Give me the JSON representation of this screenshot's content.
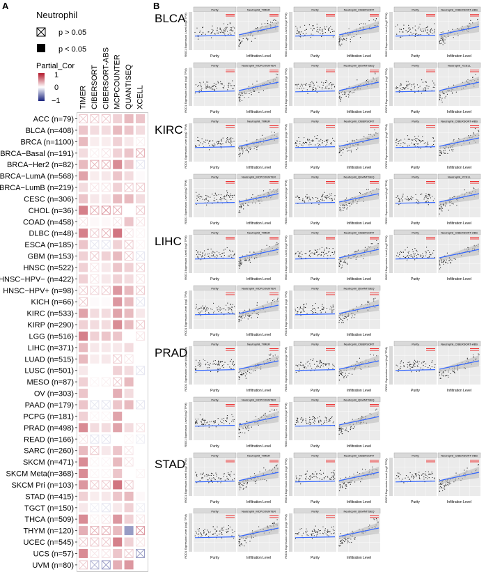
{
  "panel_a": {
    "label": "A",
    "legend": {
      "title": "Neutrophil",
      "ns_label": "p > 0.05",
      "sig_label": "p < 0.05",
      "scale_title": "Partial_Cor",
      "scale_ticks": [
        "1",
        "0",
        "−1"
      ]
    }
  },
  "panel_b": {
    "label": "B",
    "y_axis_label": "ROD1 Expression Level (log2 TPM)",
    "purity_x_label": "Purity",
    "infiltration_x_label": "Infiltration Level"
  },
  "colors": {
    "positive": "#b2182b",
    "negative": "#1a237e",
    "neutral": "#ffffff",
    "fit_line": "#3366ff",
    "ci_band": "#bdbdbd"
  },
  "chart_data": [
    {
      "type": "heatmap",
      "title": "Neutrophil",
      "value_label": "Partial_Cor",
      "range": [
        -1,
        1
      ],
      "columns": [
        "TIMER",
        "CIBERSORT",
        "CIBERSORT-ABS",
        "MCPCOUNTER",
        "QUANTISEQ",
        "XCELL"
      ],
      "rows": [
        "ACC (n=79)",
        "BLCA (n=408)",
        "BRCA (n=1100)",
        "BRCA−Basal (n=191)",
        "BRCA−Her2 (n=82)",
        "BRCA−LumA (n=568)",
        "BRCA−LumB (n=219)",
        "CESC (n=306)",
        "CHOL (n=36)",
        "COAD (n=458)",
        "DLBC (n=48)",
        "ESCA (n=185)",
        "GBM (n=153)",
        "HNSC (n=522)",
        "HNSC−HPV− (n=422)",
        "HNSC−HPV+ (n=98)",
        "KICH (n=66)",
        "KIRC (n=533)",
        "KIRP (n=290)",
        "LGG (n=516)",
        "LIHC (n=371)",
        "LUAD (n=515)",
        "LUSC (n=501)",
        "MESO (n=87)",
        "OV (n=303)",
        "PAAD (n=179)",
        "PCPG (n=181)",
        "PRAD (n=498)",
        "READ (n=166)",
        "SARC (n=260)",
        "SKCM (n=471)",
        "SKCM Meta(n=368)",
        "SKCM Pri (n=103)",
        "STAD (n=415)",
        "TGCT (n=150)",
        "THCA (n=509)",
        "THYM (n=120)",
        "UCEC (n=545)",
        "UCS (n=57)",
        "UVM (n=80)"
      ],
      "values": [
        [
          0.1,
          0.1,
          0.1,
          0.2,
          0.3,
          0.25
        ],
        [
          0.25,
          0.15,
          0.15,
          0.3,
          0.25,
          0.15
        ],
        [
          0.3,
          0.08,
          0.08,
          0.2,
          0.1,
          0.03
        ],
        [
          0.15,
          0.03,
          0.05,
          0.2,
          0.25,
          0.15
        ],
        [
          0.3,
          0.15,
          0.15,
          0.5,
          0.25,
          -0.05
        ],
        [
          0.4,
          0.08,
          0.1,
          0.25,
          0.15,
          0.02
        ],
        [
          0.15,
          0.05,
          0.05,
          0.2,
          0.1,
          0.1
        ],
        [
          0.25,
          0.1,
          0.1,
          0.3,
          0.3,
          0.15
        ],
        [
          0.55,
          0.15,
          0.2,
          0.15,
          0.0,
          0.1
        ],
        [
          0.05,
          0.03,
          0.03,
          0.05,
          0.25,
          0.05
        ],
        [
          0.55,
          0.1,
          0.15,
          0.6,
          0.05,
          0.02
        ],
        [
          0.25,
          -0.05,
          -0.05,
          0.2,
          0.1,
          0.02
        ],
        [
          0.2,
          0.1,
          0.2,
          0.3,
          0.1,
          -0.05
        ],
        [
          0.2,
          0.05,
          0.1,
          0.25,
          0.2,
          0.08
        ],
        [
          0.2,
          0.05,
          0.1,
          0.2,
          0.15,
          0.05
        ],
        [
          0.1,
          0.08,
          0.1,
          0.45,
          0.3,
          0.1
        ],
        [
          0.1,
          0.02,
          0.02,
          0.45,
          0.3,
          -0.05
        ],
        [
          0.4,
          0.15,
          0.15,
          0.4,
          0.3,
          0.1
        ],
        [
          0.2,
          0.15,
          0.15,
          0.5,
          0.3,
          0.1
        ],
        [
          0.55,
          0.2,
          0.25,
          0.25,
          0.0,
          0.05
        ],
        [
          0.3,
          0.1,
          0.1,
          0.1,
          0.15,
          0.0
        ],
        [
          0.3,
          0.08,
          0.1,
          0.1,
          0.05,
          0.0
        ],
        [
          0.1,
          0.0,
          0.0,
          0.2,
          0.15,
          -0.05
        ],
        [
          0.2,
          0.02,
          0.03,
          0.1,
          0.3,
          0.0
        ],
        [
          0.25,
          0.0,
          0.0,
          0.35,
          0.15,
          0.0
        ],
        [
          0.25,
          -0.05,
          -0.05,
          0.25,
          0.3,
          -0.05
        ],
        [
          0.2,
          0.02,
          0.02,
          0.4,
          0.0,
          0.0
        ],
        [
          0.5,
          0.15,
          0.15,
          0.4,
          0.15,
          0.05
        ],
        [
          0.05,
          -0.05,
          -0.05,
          0.0,
          0.02,
          -0.03
        ],
        [
          0.3,
          0.1,
          0.1,
          0.25,
          0.05,
          0.0
        ],
        [
          0.5,
          0.02,
          0.02,
          0.3,
          0.05,
          0.0
        ],
        [
          0.5,
          0.02,
          0.02,
          0.25,
          0.0,
          0.02
        ],
        [
          0.45,
          0.1,
          0.1,
          0.6,
          0.1,
          0.0
        ],
        [
          0.2,
          0.08,
          0.1,
          0.25,
          0.3,
          0.03
        ],
        [
          0.1,
          -0.03,
          -0.05,
          0.1,
          0.2,
          -0.03
        ],
        [
          0.5,
          0.03,
          0.05,
          0.45,
          0.2,
          0.05
        ],
        [
          0.35,
          0.15,
          0.15,
          0.3,
          -0.45,
          0.2
        ],
        [
          0.1,
          0.1,
          0.1,
          0.55,
          0.2,
          0.05
        ],
        [
          0.5,
          0.05,
          0.05,
          0.25,
          0.1,
          -0.2
        ],
        [
          0.1,
          -0.15,
          -0.2,
          0.35,
          0.45,
          0.0
        ]
      ],
      "significant": [
        [
          0,
          0,
          0,
          1,
          1,
          1
        ],
        [
          1,
          1,
          1,
          1,
          1,
          1
        ],
        [
          1,
          1,
          1,
          1,
          1,
          0
        ],
        [
          1,
          0,
          0,
          1,
          1,
          0
        ],
        [
          1,
          0,
          0,
          1,
          1,
          0
        ],
        [
          1,
          1,
          1,
          1,
          1,
          1
        ],
        [
          1,
          0,
          0,
          1,
          0,
          0
        ],
        [
          1,
          1,
          1,
          1,
          1,
          1
        ],
        [
          1,
          0,
          0,
          0,
          1,
          0
        ],
        [
          0,
          1,
          1,
          0,
          1,
          0
        ],
        [
          1,
          0,
          0,
          1,
          0,
          0
        ],
        [
          1,
          0,
          0,
          1,
          0,
          0
        ],
        [
          1,
          0,
          1,
          1,
          0,
          0
        ],
        [
          1,
          0,
          1,
          1,
          1,
          0
        ],
        [
          1,
          0,
          1,
          1,
          1,
          0
        ],
        [
          0,
          0,
          0,
          1,
          1,
          0
        ],
        [
          0,
          1,
          1,
          1,
          1,
          0
        ],
        [
          1,
          1,
          1,
          1,
          1,
          1
        ],
        [
          1,
          1,
          1,
          1,
          1,
          0
        ],
        [
          1,
          1,
          1,
          1,
          1,
          0
        ],
        [
          1,
          1,
          1,
          1,
          1,
          1
        ],
        [
          1,
          1,
          1,
          0,
          0,
          0
        ],
        [
          1,
          1,
          1,
          1,
          1,
          0
        ],
        [
          1,
          0,
          0,
          0,
          1,
          0
        ],
        [
          1,
          0,
          0,
          1,
          1,
          0
        ],
        [
          1,
          0,
          0,
          1,
          1,
          0
        ],
        [
          1,
          0,
          0,
          1,
          1,
          0
        ],
        [
          1,
          1,
          1,
          1,
          1,
          0
        ],
        [
          0,
          0,
          0,
          1,
          0,
          0
        ],
        [
          1,
          0,
          1,
          1,
          0,
          1
        ],
        [
          1,
          0,
          0,
          1,
          0,
          1
        ],
        [
          1,
          0,
          0,
          1,
          1,
          0
        ],
        [
          1,
          0,
          0,
          1,
          0,
          1
        ],
        [
          1,
          1,
          1,
          1,
          1,
          1
        ],
        [
          1,
          0,
          0,
          1,
          1,
          0
        ],
        [
          1,
          0,
          0,
          1,
          1,
          0
        ],
        [
          1,
          0,
          0,
          1,
          1,
          0
        ],
        [
          0,
          0,
          0,
          1,
          1,
          0
        ],
        [
          1,
          0,
          0,
          1,
          0,
          0
        ],
        [
          0,
          0,
          0,
          1,
          1,
          1
        ]
      ],
      "legend": "left"
    },
    {
      "type": "scatter",
      "y_label": "ROD1 Expression Level (log2 TPM)",
      "x_labels": [
        "Purity",
        "Infiltration Level"
      ],
      "groups": [
        {
          "cancer": "BLCA",
          "rows": [
            [
              "TIMER",
              "CIBERSORT",
              "CIBERSORT-ABS"
            ],
            [
              "MCPCOUNTER",
              "QUANTISEQ",
              "XCELL"
            ]
          ]
        },
        {
          "cancer": "KIRC",
          "rows": [
            [
              "TIMER",
              "CIBERSORT",
              "CIBERSORT-ABS"
            ],
            [
              "MCPCOUNTER",
              "QUANTISEQ",
              "XCELL"
            ]
          ]
        },
        {
          "cancer": "LIHC",
          "rows": [
            [
              "TIMER",
              "CIBERSORT",
              "CIBERSORT-ABS"
            ],
            [
              "MCPCOUNTER",
              "QUANTISEQ"
            ]
          ]
        },
        {
          "cancer": "PRAD",
          "rows": [
            [
              "TIMER",
              "CIBERSORT",
              "CIBERSORT-ABS"
            ],
            [
              "MCPCOUNTER",
              "QUANTISEQ"
            ]
          ]
        },
        {
          "cancer": "STAD",
          "rows": [
            [
              "TIMER",
              "CIBERSORT",
              "CIBERSORT-ABS"
            ],
            [
              "MCPCOUNTER",
              "QUANTISEQ"
            ]
          ]
        }
      ],
      "facet_prefix": "Neutrophil_",
      "purity_facet": "Purity"
    }
  ]
}
